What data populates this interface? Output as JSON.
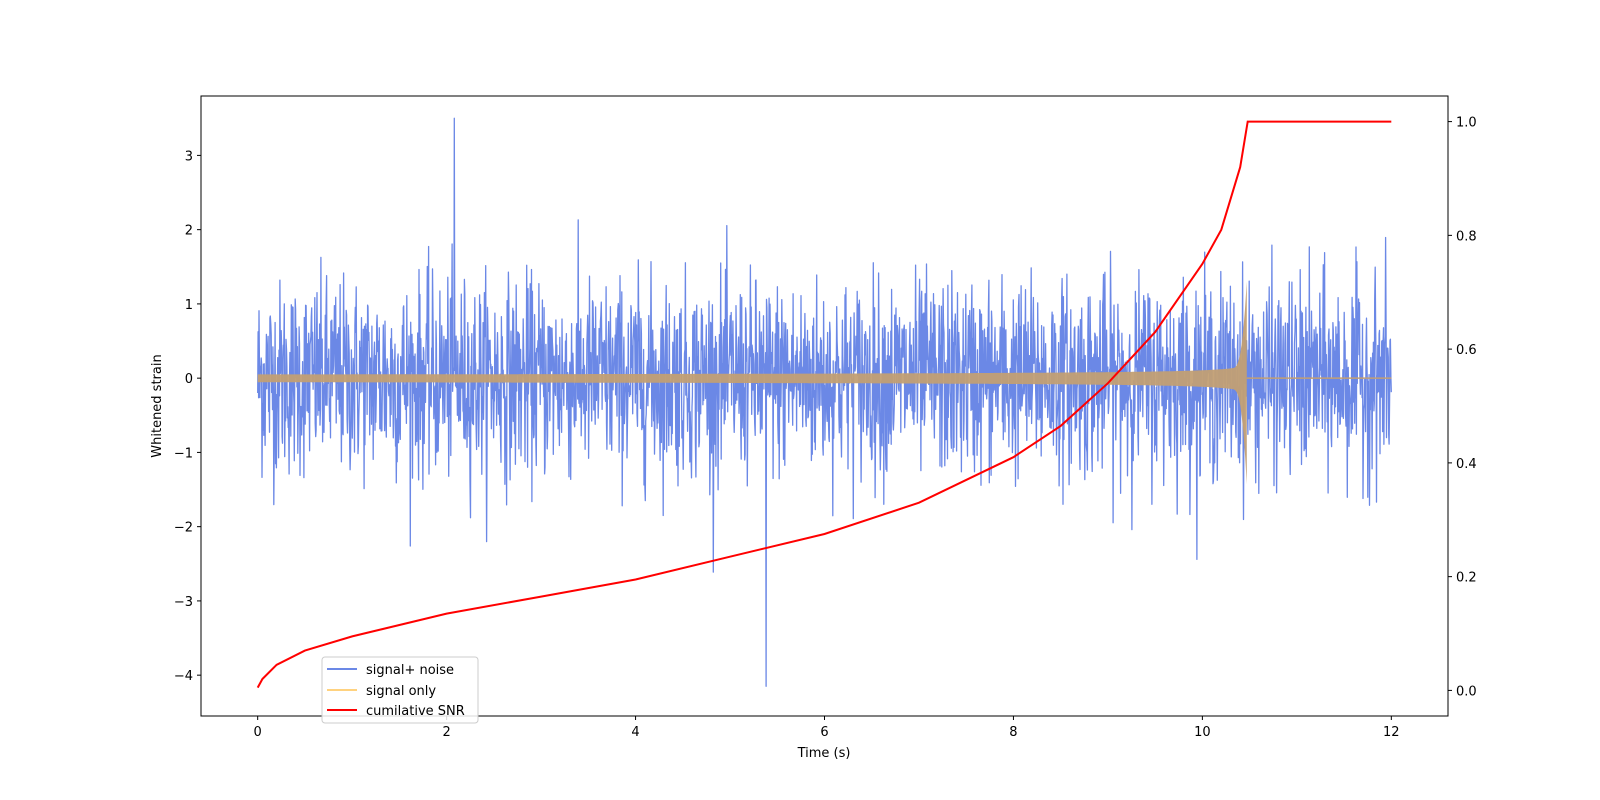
{
  "chart_data": {
    "type": "line",
    "xlabel": "Time (s)",
    "ylabel": "Whitened strain",
    "y2label": "",
    "xlim": [
      -0.6,
      12.6
    ],
    "ylim": [
      -4.55,
      3.8
    ],
    "y2lim": [
      -0.045,
      1.045
    ],
    "xticks": [
      0,
      2,
      4,
      6,
      8,
      10,
      12
    ],
    "yticks": [
      -4,
      -3,
      -2,
      -1,
      0,
      1,
      2,
      3
    ],
    "y2ticks": [
      0.0,
      0.2,
      0.4,
      0.6,
      0.8,
      1.0
    ],
    "xtick_labels": [
      "0",
      "2",
      "4",
      "6",
      "8",
      "10",
      "12"
    ],
    "ytick_labels": [
      "−4",
      "−3",
      "−2",
      "−1",
      "0",
      "1",
      "2",
      "3"
    ],
    "y2tick_labels": [
      "0.0",
      "0.2",
      "0.4",
      "0.6",
      "0.8",
      "1.0"
    ],
    "grid": false,
    "legend_position": "lower-left",
    "series": [
      {
        "name": "signal+ noise",
        "axis": "left",
        "color": "#6b88e6",
        "description_values": {
          "x_range": [
            0,
            12
          ],
          "typical_envelope": [
            -1.9,
            2.0
          ],
          "max": 3.5,
          "max_at": 2.08,
          "min": -4.15,
          "min_at": 5.38
        }
      },
      {
        "name": "signal only",
        "axis": "left",
        "color": "#ffa500",
        "description_values": {
          "x_range": [
            0,
            12
          ],
          "amplitude_start": 0.05,
          "amplitude_peak": 1.3,
          "peak_time": 10.47,
          "after_merger": 0.0
        }
      },
      {
        "name": "cumilative SNR",
        "axis": "right",
        "color": "#ff0000",
        "x": [
          0,
          0.05,
          0.2,
          0.5,
          1.0,
          2.0,
          3.0,
          4.0,
          5.0,
          6.0,
          7.0,
          8.0,
          8.5,
          9.0,
          9.5,
          10.0,
          10.2,
          10.4,
          10.48,
          12.0
        ],
        "values": [
          0.005,
          0.02,
          0.045,
          0.07,
          0.095,
          0.135,
          0.165,
          0.195,
          0.235,
          0.275,
          0.33,
          0.41,
          0.465,
          0.54,
          0.63,
          0.75,
          0.81,
          0.92,
          1.0,
          1.0
        ]
      }
    ]
  }
}
